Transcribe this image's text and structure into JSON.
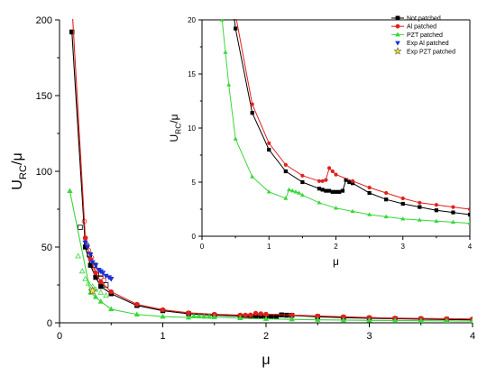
{
  "chart_data": [
    {
      "type": "line",
      "panel": "main",
      "xlabel": "μ",
      "ylabel_main": "U",
      "ylabel_sub": "RC",
      "ylabel_tail": "/μ",
      "xlim": [
        0,
        4
      ],
      "ylim": [
        0,
        200
      ],
      "xticks": [
        "0",
        "1",
        "2",
        "3",
        "4"
      ],
      "yticks": [
        "0",
        "50",
        "100",
        "150",
        "200"
      ],
      "grid": false,
      "series": [
        {
          "name": "Not patched",
          "color": "#000000",
          "marker": "square",
          "line": true,
          "x": [
            0.12,
            0.25,
            0.3,
            0.35,
            0.4,
            0.5,
            0.75,
            1.0,
            1.25,
            1.5,
            1.75,
            1.8,
            1.85,
            1.9,
            1.95,
            2.0,
            2.05,
            2.1,
            2.15,
            2.2,
            2.25,
            2.5,
            2.75,
            3.0,
            3.25,
            3.5,
            3.75,
            4.0
          ],
          "y": [
            192,
            50,
            38,
            30,
            24,
            19.2,
            11.4,
            8.0,
            6.0,
            5.0,
            4.4,
            4.3,
            4.2,
            4.2,
            4.1,
            4.1,
            4.1,
            4.2,
            5.2,
            5.0,
            4.9,
            4.0,
            3.4,
            3.0,
            2.7,
            2.4,
            2.2,
            2.0
          ]
        },
        {
          "name": "Al patched",
          "color": "#e0201c",
          "marker": "circle",
          "line": true,
          "x": [
            0.12,
            0.25,
            0.3,
            0.35,
            0.4,
            0.5,
            0.75,
            1.0,
            1.25,
            1.5,
            1.75,
            1.8,
            1.85,
            1.9,
            1.95,
            2.0,
            2.25,
            2.5,
            2.75,
            3.0,
            3.25,
            3.5,
            3.75,
            4.0
          ],
          "y": [
            210,
            56,
            42,
            33,
            27,
            20.5,
            12.2,
            8.6,
            6.6,
            5.6,
            5.1,
            5.1,
            5.2,
            6.3,
            6.0,
            5.7,
            5.1,
            4.5,
            4.0,
            3.5,
            3.1,
            2.9,
            2.7,
            2.5
          ]
        },
        {
          "name": "PZT patched",
          "color": "#3ad63a",
          "marker": "triangle",
          "line": true,
          "x": [
            0.1,
            0.3,
            0.35,
            0.4,
            0.5,
            0.75,
            1.0,
            1.25,
            1.3,
            1.35,
            1.4,
            1.45,
            1.5,
            1.75,
            2.0,
            2.25,
            2.5,
            2.75,
            3.0,
            3.25,
            3.5,
            3.75,
            4.0
          ],
          "y": [
            87,
            20,
            17,
            14,
            9.0,
            5.5,
            4.1,
            3.5,
            4.3,
            4.2,
            4.1,
            4.0,
            3.8,
            3.1,
            2.6,
            2.3,
            2.0,
            1.8,
            1.6,
            1.5,
            1.4,
            1.3,
            1.2
          ]
        },
        {
          "name": "Exp Al patched",
          "color": "#1a2fd8",
          "marker": "triangle-down",
          "line": false,
          "x": [
            0.25,
            0.27,
            0.3,
            0.32,
            0.35,
            0.38,
            0.4,
            0.42,
            0.45,
            0.48,
            0.5
          ],
          "y": [
            53,
            50,
            45,
            40,
            38,
            35,
            34,
            33,
            31,
            30,
            29
          ]
        },
        {
          "name": "Exp PZT patched",
          "color": "#f5e61a",
          "marker": "star",
          "line": false,
          "x": [
            0.32
          ],
          "y": [
            21
          ]
        }
      ],
      "open_markers": [
        {
          "color": "#e0201c",
          "marker": "circle",
          "x": [
            0.24,
            0.25,
            0.28,
            0.31,
            0.33,
            0.36,
            0.4,
            0.43
          ],
          "y": [
            67,
            56,
            48,
            43,
            37,
            34,
            30,
            28
          ]
        },
        {
          "color": "#000000",
          "marker": "square",
          "x": [
            0.2,
            0.26,
            0.29,
            0.34,
            0.4,
            0.45
          ],
          "y": [
            63,
            51,
            45,
            38,
            32,
            25
          ]
        },
        {
          "color": "#3ad63a",
          "marker": "triangle",
          "x": [
            0.18,
            0.22,
            0.25,
            0.28,
            0.32,
            0.35,
            0.4,
            0.45
          ],
          "y": [
            44,
            34,
            29,
            26,
            24,
            22,
            20,
            18
          ]
        }
      ]
    },
    {
      "type": "line",
      "panel": "inset",
      "xlabel": "μ",
      "ylabel_main": "U",
      "ylabel_sub": "RC",
      "ylabel_tail": "/μ",
      "xlim": [
        0,
        4
      ],
      "ylim": [
        0,
        20
      ],
      "xticks": [
        "0",
        "1",
        "2",
        "3",
        "4"
      ],
      "yticks": [
        "0",
        "5",
        "10",
        "15",
        "20"
      ],
      "grid": false,
      "legend_position": "top-right",
      "series_ref": "main"
    }
  ],
  "legend": [
    {
      "label": "Not patched",
      "color": "#000000",
      "marker": "square",
      "line": true
    },
    {
      "label": "Al patched",
      "color": "#e0201c",
      "marker": "circle",
      "line": true
    },
    {
      "label": "PZT patched",
      "color": "#3ad63a",
      "marker": "triangle",
      "line": true
    },
    {
      "label": "Exp Al patched",
      "color": "#1a2fd8",
      "marker": "triangle-down",
      "line": false
    },
    {
      "label": "Exp PZT patched",
      "color": "#f5e61a",
      "marker": "star",
      "line": false
    }
  ]
}
